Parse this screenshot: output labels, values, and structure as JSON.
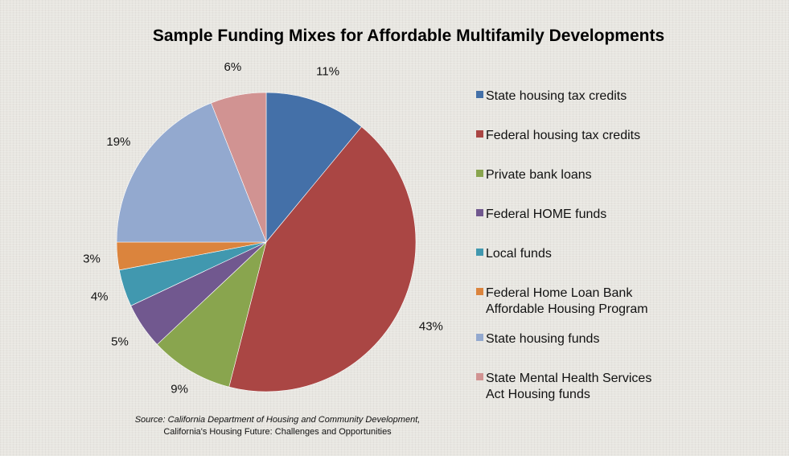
{
  "chart_data": {
    "type": "pie",
    "title": "Sample Funding Mixes for Affordable Multifamily Developments",
    "slices": [
      {
        "name": "State housing tax credits",
        "value": 11,
        "label": "11%",
        "color": "#4470a8"
      },
      {
        "name": "Federal housing tax credits",
        "value": 43,
        "label": "43%",
        "color": "#aa4644"
      },
      {
        "name": "Private bank loans",
        "value": 9,
        "label": "9%",
        "color": "#89a54e"
      },
      {
        "name": "Federal HOME funds",
        "value": 5,
        "label": "5%",
        "color": "#71588f"
      },
      {
        "name": "Local funds",
        "value": 4,
        "label": "4%",
        "color": "#4198af"
      },
      {
        "name": "Federal Home Loan Bank\nAffordable Housing Program",
        "value": 3,
        "label": "3%",
        "color": "#db843d"
      },
      {
        "name": "State housing funds",
        "value": 19,
        "label": "19%",
        "color": "#93a9cf"
      },
      {
        "name": "State Mental Health Services\nAct Housing funds",
        "value": 6,
        "label": "6%",
        "color": "#d19392"
      }
    ],
    "legend_position": "right"
  },
  "source": {
    "line1": "Source: California Department of Housing and Community Development,",
    "line2": "California's Housing Future: Challenges and Opportunities"
  }
}
